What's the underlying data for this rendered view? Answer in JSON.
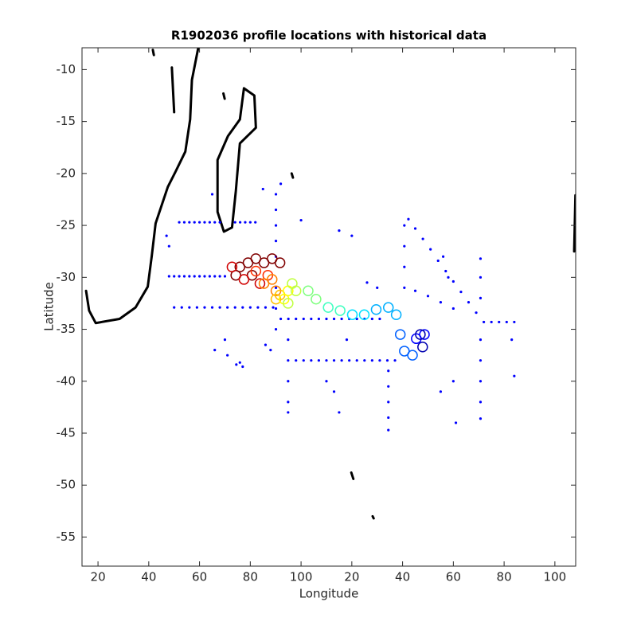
{
  "chart_data": {
    "type": "scatter",
    "title": "R1902036 profile locations with historical data",
    "xlabel": "Longitude",
    "ylabel": "Latitude",
    "xlim": [
      13.7,
      208.2
    ],
    "ylim": [
      -57.8,
      -7.9
    ],
    "xticks": [
      20,
      40,
      60,
      80,
      100,
      {
        "value": 120,
        "label": "20"
      },
      {
        "value": 140,
        "label": "40"
      },
      {
        "value": 160,
        "label": "60"
      },
      {
        "value": 180,
        "label": "80"
      },
      {
        "value": 200,
        "label": "100"
      }
    ],
    "yticks": [
      -10,
      -15,
      -20,
      -25,
      -30,
      -35,
      -40,
      -45,
      -50,
      -55
    ],
    "grid": false,
    "series": [
      {
        "style": "line",
        "color": "#000000",
        "x": [
          59.5,
          57.0,
          56.3,
          54.4,
          50.6,
          47.5,
          42.7,
          41.2,
          39.6,
          34.8,
          28.5,
          19.1,
          16.5,
          15.3,
          null,
          77.5,
          81.6,
          82.2,
          75.9,
          74.3,
          72.8,
          69.6,
          67.1,
          67.1,
          71.2,
          75.9,
          77.5,
          null,
          49.1,
          50.0,
          null,
          208.1,
          207.6,
          null,
          96.3,
          96.8,
          null,
          119.8,
          120.6,
          null,
          128.2,
          128.6,
          null,
          41.6,
          42.0,
          null,
          69.4,
          69.9
        ],
        "y": [
          -7.9,
          -11.0,
          -14.8,
          -17.9,
          -19.8,
          -21.3,
          -24.8,
          -27.9,
          -30.9,
          -32.9,
          -34.0,
          -34.4,
          -33.2,
          -31.3,
          null,
          -11.8,
          -12.5,
          -15.6,
          -17.1,
          -21.7,
          -25.2,
          -25.6,
          -23.7,
          -18.7,
          -16.4,
          -14.8,
          -11.8,
          null,
          -9.8,
          -14.1,
          null,
          -22.1,
          -27.5,
          null,
          -20.0,
          -20.4,
          null,
          -48.8,
          -49.4,
          null,
          -53.0,
          -53.2,
          null,
          -8.1,
          -8.6,
          null,
          -12.3,
          -12.8
        ]
      },
      {
        "style": "dot",
        "color": "#0000ff",
        "x": [
          52,
          54,
          56,
          58,
          60,
          62,
          64,
          66,
          68,
          74,
          76,
          78,
          80,
          82,
          48,
          50,
          52,
          54,
          56,
          58,
          60,
          62,
          64,
          66,
          68,
          70,
          50,
          53,
          56,
          59,
          62,
          65,
          68,
          71,
          74,
          77,
          80,
          83,
          86,
          89,
          92,
          95,
          98,
          101,
          104,
          107,
          110,
          113,
          116,
          119,
          122,
          125,
          128,
          131,
          98,
          101,
          104,
          107,
          110,
          113,
          116,
          119,
          122,
          125,
          128,
          131,
          134,
          137,
          90.1,
          90.1,
          90.1,
          90.1,
          90.1,
          90.1,
          90.1,
          90.1,
          94.9,
          94.9,
          94.9,
          94.9,
          94.9,
          142.3,
          145,
          148,
          151,
          154,
          157,
          160,
          163,
          166,
          169,
          170.7,
          170.7,
          170.7,
          170.7,
          170.7,
          170.7,
          170.7,
          170.7,
          172,
          175,
          178,
          181,
          184,
          140.7,
          140.7,
          140.7,
          140.7,
          145,
          150,
          155,
          160,
          134.4,
          134.4,
          134.4,
          134.4,
          134.4,
          75.9,
          77,
          74.5,
          70,
          71,
          66,
          88,
          86,
          113,
          110,
          115,
          118,
          130,
          126,
          120,
          115,
          156,
          158,
          160,
          161,
          183,
          184,
          155,
          48,
          47,
          65,
          85,
          92,
          100
        ],
        "y": [
          -24.7,
          -24.7,
          -24.7,
          -24.7,
          -24.7,
          -24.7,
          -24.7,
          -24.7,
          -24.7,
          -24.7,
          -24.7,
          -24.7,
          -24.7,
          -24.7,
          -29.9,
          -29.9,
          -29.9,
          -29.9,
          -29.9,
          -29.9,
          -29.9,
          -29.9,
          -29.9,
          -29.9,
          -29.9,
          -29.9,
          -32.9,
          -32.9,
          -32.9,
          -32.9,
          -32.9,
          -32.9,
          -32.9,
          -32.9,
          -32.9,
          -32.9,
          -32.9,
          -32.9,
          -32.9,
          -32.9,
          -34,
          -34,
          -34,
          -34,
          -34,
          -34,
          -34,
          -34,
          -34,
          -34,
          -34,
          -34,
          -34,
          -34,
          -38,
          -38,
          -38,
          -38,
          -38,
          -38,
          -38,
          -38,
          -38,
          -38,
          -38,
          -38,
          -38,
          -38,
          -22,
          -23.5,
          -25,
          -26.5,
          -28,
          -31,
          -33,
          -35,
          -36,
          -38,
          -40,
          -42,
          -43,
          -24.4,
          -25.3,
          -26.3,
          -27.3,
          -28.4,
          -29.4,
          -30.4,
          -31.4,
          -32.4,
          -33.4,
          -28.2,
          -30,
          -32,
          -36,
          -38,
          -40,
          -42,
          -43.6,
          -34.3,
          -34.3,
          -34.3,
          -34.3,
          -34.3,
          -25,
          -27,
          -29,
          -31,
          -31.3,
          -31.8,
          -32.4,
          -33,
          -39,
          -40.5,
          -42,
          -43.5,
          -44.7,
          -38.2,
          -38.6,
          -38.4,
          -36,
          -37.5,
          -37,
          -37,
          -36.5,
          -41,
          -40,
          -43,
          -36,
          -31,
          -30.5,
          -26,
          -25.5,
          -28,
          -30,
          -40,
          -44,
          -36,
          -39.5,
          -41,
          -27,
          -26,
          -22,
          -21.5,
          -21,
          -24.5
        ]
      },
      {
        "style": "circle",
        "x": [
          75.9,
          79.1,
          82.2,
          85.4,
          74.3,
          80.7,
          88.6,
          91.7,
          72.8,
          77.5,
          83.8,
          82.2,
          86.9,
          85.4,
          88.6,
          90.1,
          91.7,
          90.1,
          93.3,
          94.9,
          96.5,
          98.0,
          94.9,
          102.8,
          105.9,
          110.7,
          115.4,
          120.2,
          124.9,
          129.6,
          134.4,
          137.5,
          139.1,
          140.7,
          143.9,
          145.4,
          148.6,
          147.0,
          147.9
        ],
        "y": [
          -29.0,
          -28.6,
          -28.2,
          -28.6,
          -29.8,
          -29.8,
          -28.2,
          -28.6,
          -29.0,
          -30.2,
          -30.6,
          -29.4,
          -29.8,
          -30.6,
          -30.2,
          -31.3,
          -31.7,
          -32.1,
          -32.1,
          -31.3,
          -30.6,
          -31.3,
          -32.5,
          -31.3,
          -32.1,
          -32.9,
          -33.2,
          -33.6,
          -33.6,
          -33.1,
          -32.9,
          -33.6,
          -35.5,
          -37.1,
          -37.5,
          -35.9,
          -35.5,
          -35.5,
          -36.7
        ],
        "colors": [
          "#800000",
          "#800000",
          "#800000",
          "#800000",
          "#800000",
          "#800000",
          "#800000",
          "#800000",
          "#d00000",
          "#d00000",
          "#d00000",
          "#ff3000",
          "#ff3000",
          "#ff8000",
          "#ff8000",
          "#ff8000",
          "#ffc000",
          "#ffc000",
          "#ffff00",
          "#ffff00",
          "#c0ff40",
          "#c0ff40",
          "#c0ff40",
          "#80ff80",
          "#80ff80",
          "#40ffc0",
          "#40ffc0",
          "#00e0ff",
          "#00e0ff",
          "#00b0ff",
          "#00b0ff",
          "#00b0ff",
          "#0060ff",
          "#0060ff",
          "#0060ff",
          "#0000ff",
          "#0000ff",
          "#0000b0",
          "#0000b0"
        ]
      }
    ]
  }
}
